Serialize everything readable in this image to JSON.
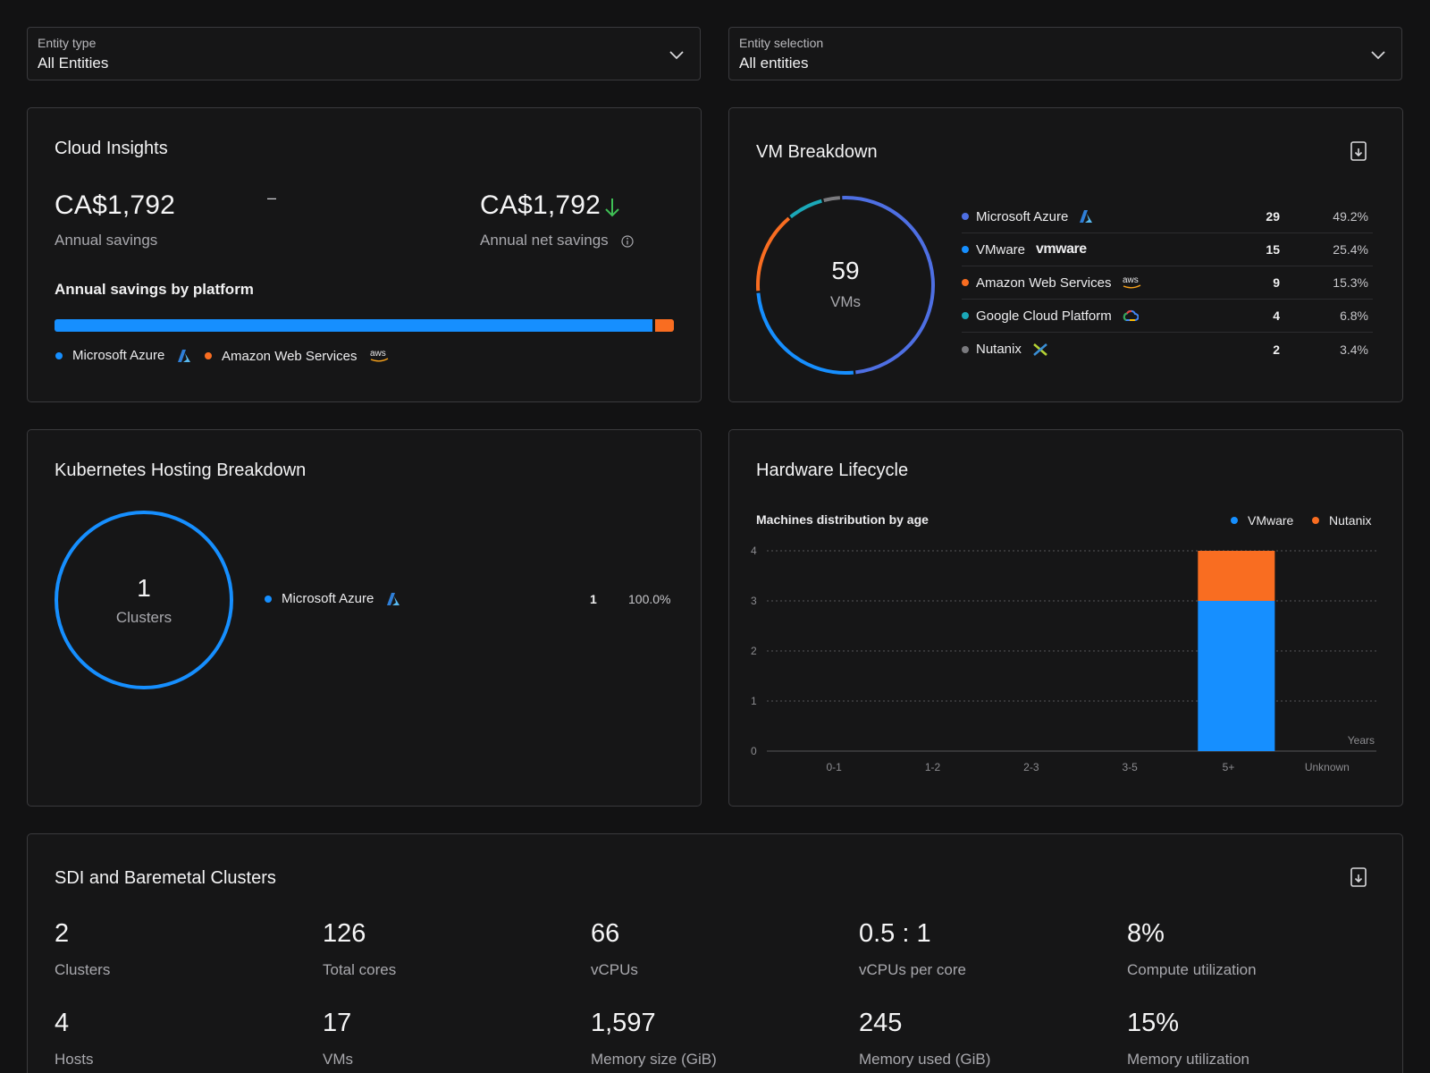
{
  "filters": {
    "entity_type": {
      "label": "Entity type",
      "value": "All Entities",
      "icon": "chevron-down-icon"
    },
    "entity_selection": {
      "label": "Entity selection",
      "value": "All entities",
      "icon": "chevron-down-icon"
    }
  },
  "cloud_insights": {
    "title": "Cloud Insights",
    "annual_savings": {
      "value": "CA$1,792",
      "label": "Annual savings"
    },
    "separator": "–",
    "annual_net_savings": {
      "value": "CA$1,792",
      "label": "Annual net savings",
      "trend_icon": "arrow-down-icon",
      "trend_color": "#3fbf55",
      "info_icon": "info-icon"
    },
    "by_platform": {
      "label": "Annual savings by platform",
      "segments": [
        {
          "name": "Microsoft Azure",
          "share": 0.97,
          "color": "#168fff",
          "icon": "azure-logo-icon"
        },
        {
          "name": "Amazon Web Services",
          "share": 0.03,
          "color": "#f96d21",
          "icon": "aws-logo-icon"
        }
      ]
    }
  },
  "vm_breakdown": {
    "title": "VM Breakdown",
    "export_icon": "export-icon",
    "total": "59",
    "total_label": "VMs",
    "rows": [
      {
        "name": "Microsoft Azure",
        "count": "29",
        "pct": "49.2%",
        "value": 29,
        "color": "#4e6fe3",
        "icon": "azure-logo-icon"
      },
      {
        "name": "VMware",
        "count": "15",
        "pct": "25.4%",
        "value": 15,
        "color": "#168fff",
        "icon": "vmware-logo-icon",
        "logo_text": "vmware"
      },
      {
        "name": "Amazon Web Services",
        "count": "9",
        "pct": "15.3%",
        "value": 9,
        "color": "#f96d21",
        "icon": "aws-logo-icon",
        "logo_text": "aws"
      },
      {
        "name": "Google Cloud Platform",
        "count": "4",
        "pct": "6.8%",
        "value": 4,
        "color": "#1ba8b8",
        "icon": "gcp-logo-icon"
      },
      {
        "name": "Nutanix",
        "count": "2",
        "pct": "3.4%",
        "value": 2,
        "color": "#7a7a7e",
        "icon": "nutanix-logo-icon"
      }
    ]
  },
  "kubernetes": {
    "title": "Kubernetes Hosting Breakdown",
    "total": "1",
    "total_label": "Clusters",
    "rows": [
      {
        "name": "Microsoft Azure",
        "count": "1",
        "pct": "100.0%",
        "color": "#168fff",
        "icon": "azure-logo-icon"
      }
    ]
  },
  "hardware": {
    "title": "Hardware Lifecycle",
    "subtitle": "Machines distribution by age"
  },
  "chart_data": {
    "type": "bar",
    "stacked": true,
    "title": "Machines distribution by age",
    "categories": [
      "0-1",
      "1-2",
      "2-3",
      "3-5",
      "5+",
      "Unknown"
    ],
    "series": [
      {
        "name": "VMware",
        "values": [
          0,
          0,
          0,
          0,
          3,
          0
        ],
        "color": "#168fff"
      },
      {
        "name": "Nutanix",
        "values": [
          0,
          0,
          0,
          0,
          1,
          0
        ],
        "color": "#f96d21"
      }
    ],
    "xlabel": "Years",
    "ylabel": "",
    "ylim": [
      0,
      4
    ],
    "yticks": [
      "0",
      "1",
      "2",
      "3",
      "4"
    ],
    "grid": true,
    "legend": "top-right"
  },
  "sdi": {
    "title": "SDI and Baremetal Clusters",
    "export_icon": "export-icon",
    "stats": [
      {
        "value": "2",
        "label": "Clusters"
      },
      {
        "value": "126",
        "label": "Total cores"
      },
      {
        "value": "66",
        "label": "vCPUs"
      },
      {
        "value": "0.5 : 1",
        "label": "vCPUs per core"
      },
      {
        "value": "8%",
        "label": "Compute utilization"
      },
      {
        "value": "4",
        "label": "Hosts"
      },
      {
        "value": "17",
        "label": "VMs"
      },
      {
        "value": "1,597",
        "label": "Memory size (GiB)"
      },
      {
        "value": "245",
        "label": "Memory used (GiB)"
      },
      {
        "value": "15%",
        "label": "Memory utilization"
      }
    ]
  }
}
